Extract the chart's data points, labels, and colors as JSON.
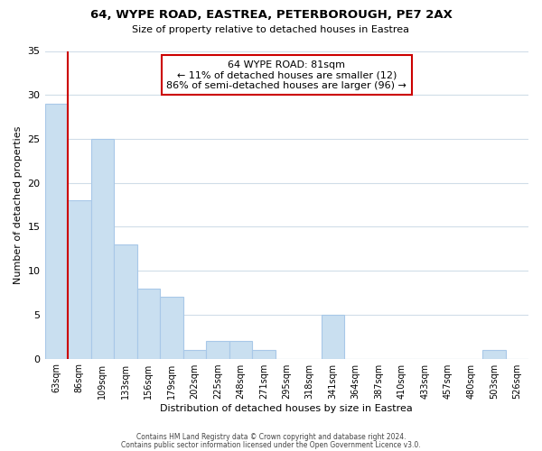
{
  "title1": "64, WYPE ROAD, EASTREA, PETERBOROUGH, PE7 2AX",
  "title2": "Size of property relative to detached houses in Eastrea",
  "xlabel": "Distribution of detached houses by size in Eastrea",
  "ylabel": "Number of detached properties",
  "bin_labels": [
    "63sqm",
    "86sqm",
    "109sqm",
    "133sqm",
    "156sqm",
    "179sqm",
    "202sqm",
    "225sqm",
    "248sqm",
    "271sqm",
    "295sqm",
    "318sqm",
    "341sqm",
    "364sqm",
    "387sqm",
    "410sqm",
    "433sqm",
    "457sqm",
    "480sqm",
    "503sqm",
    "526sqm"
  ],
  "bar_heights": [
    29,
    18,
    25,
    13,
    8,
    7,
    1,
    2,
    2,
    1,
    0,
    0,
    5,
    0,
    0,
    0,
    0,
    0,
    0,
    1,
    0
  ],
  "bar_color": "#c9dff0",
  "bar_edge_color": "#a8c8e8",
  "vline_color": "#cc0000",
  "annotation_title": "64 WYPE ROAD: 81sqm",
  "annotation_line1": "← 11% of detached houses are smaller (12)",
  "annotation_line2": "86% of semi-detached houses are larger (96) →",
  "annotation_box_color": "#ffffff",
  "annotation_box_edge": "#cc0000",
  "ylim": [
    0,
    35
  ],
  "yticks": [
    0,
    5,
    10,
    15,
    20,
    25,
    30,
    35
  ],
  "footer1": "Contains HM Land Registry data © Crown copyright and database right 2024.",
  "footer2": "Contains public sector information licensed under the Open Government Licence v3.0.",
  "bg_color": "#ffffff",
  "grid_color": "#d0dde8"
}
